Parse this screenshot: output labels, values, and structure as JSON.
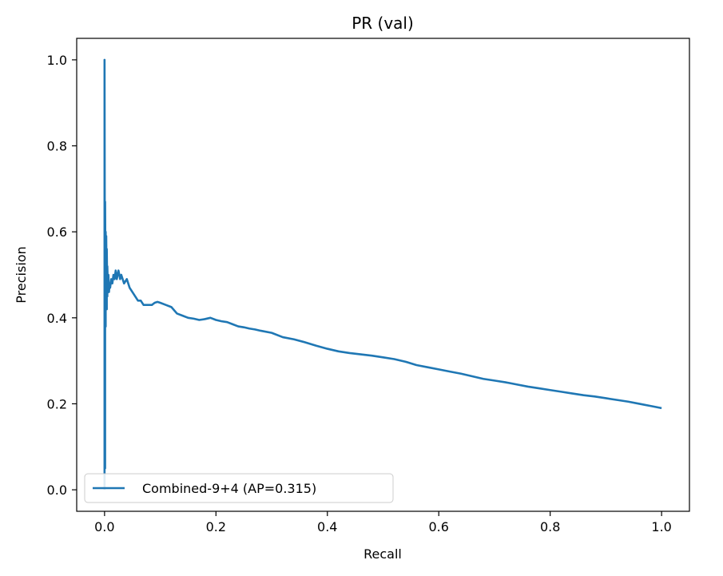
{
  "chart_data": {
    "type": "line",
    "title": "PR (val)",
    "xlabel": "Recall",
    "ylabel": "Precision",
    "xlim": [
      -0.05,
      1.05
    ],
    "ylim": [
      -0.05,
      1.05
    ],
    "xticks": [
      0.0,
      0.2,
      0.4,
      0.6,
      0.8,
      1.0
    ],
    "xtick_labels": [
      "0.0",
      "0.2",
      "0.4",
      "0.6",
      "0.8",
      "1.0"
    ],
    "yticks": [
      0.0,
      0.2,
      0.4,
      0.6,
      0.8,
      1.0
    ],
    "ytick_labels": [
      "0.0",
      "0.2",
      "0.4",
      "0.6",
      "0.8",
      "1.0"
    ],
    "grid": false,
    "legend_position": "lower-left",
    "series": [
      {
        "name": "Combined-9+4 (AP=0.315)",
        "color": "#1f77b4",
        "x": [
          0.0,
          0.0,
          0.001,
          0.001,
          0.002,
          0.002,
          0.003,
          0.003,
          0.004,
          0.004,
          0.005,
          0.005,
          0.006,
          0.007,
          0.008,
          0.009,
          0.01,
          0.012,
          0.014,
          0.016,
          0.018,
          0.02,
          0.022,
          0.025,
          0.028,
          0.03,
          0.035,
          0.04,
          0.045,
          0.05,
          0.055,
          0.06,
          0.065,
          0.07,
          0.075,
          0.08,
          0.085,
          0.09,
          0.095,
          0.1,
          0.11,
          0.12,
          0.13,
          0.14,
          0.15,
          0.16,
          0.17,
          0.18,
          0.19,
          0.2,
          0.21,
          0.22,
          0.23,
          0.24,
          0.25,
          0.26,
          0.27,
          0.28,
          0.3,
          0.32,
          0.34,
          0.36,
          0.38,
          0.4,
          0.42,
          0.44,
          0.46,
          0.48,
          0.5,
          0.52,
          0.54,
          0.56,
          0.58,
          0.6,
          0.62,
          0.64,
          0.66,
          0.68,
          0.7,
          0.72,
          0.74,
          0.76,
          0.78,
          0.8,
          0.82,
          0.84,
          0.86,
          0.88,
          0.9,
          0.92,
          0.94,
          0.96,
          0.98,
          1.0
        ],
        "y": [
          0.0,
          1.0,
          0.05,
          0.67,
          0.38,
          0.6,
          0.45,
          0.59,
          0.42,
          0.56,
          0.45,
          0.52,
          0.47,
          0.5,
          0.46,
          0.48,
          0.47,
          0.49,
          0.48,
          0.5,
          0.49,
          0.51,
          0.49,
          0.51,
          0.49,
          0.5,
          0.48,
          0.49,
          0.47,
          0.46,
          0.45,
          0.44,
          0.44,
          0.43,
          0.43,
          0.43,
          0.43,
          0.435,
          0.437,
          0.435,
          0.43,
          0.425,
          0.41,
          0.405,
          0.4,
          0.398,
          0.395,
          0.397,
          0.4,
          0.395,
          0.392,
          0.39,
          0.385,
          0.38,
          0.378,
          0.375,
          0.373,
          0.37,
          0.365,
          0.355,
          0.35,
          0.343,
          0.335,
          0.328,
          0.322,
          0.318,
          0.315,
          0.312,
          0.308,
          0.304,
          0.298,
          0.29,
          0.285,
          0.28,
          0.275,
          0.27,
          0.264,
          0.258,
          0.254,
          0.25,
          0.245,
          0.24,
          0.236,
          0.232,
          0.228,
          0.224,
          0.22,
          0.217,
          0.213,
          0.209,
          0.205,
          0.2,
          0.195,
          0.19
        ]
      }
    ]
  }
}
